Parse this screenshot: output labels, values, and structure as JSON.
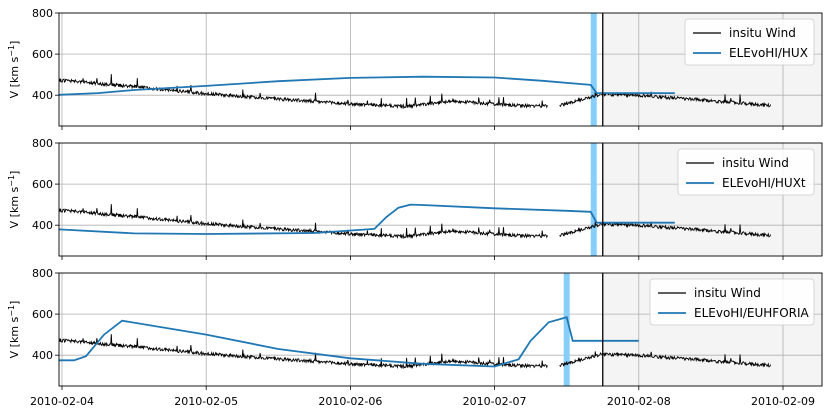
{
  "chart_data": [
    {
      "type": "line",
      "ylabel": "V [km s",
      "ylabel_sup": "−1",
      "ylabel_suffix": "]",
      "ylim": [
        250,
        800
      ],
      "yticks": [
        "400",
        "600",
        "800"
      ],
      "grid": true,
      "legend_position": "top-right",
      "series": [
        {
          "name": "insitu Wind",
          "color": "#000000"
        },
        {
          "name": "ELEvoHI/HUX",
          "color": "#1f77b4",
          "x": [
            "2010-02-03 22:00",
            "2010-02-04 06:00",
            "2010-02-04 12:00",
            "2010-02-05 00:00",
            "2010-02-05 12:00",
            "2010-02-06 00:00",
            "2010-02-06 12:00",
            "2010-02-07 00:00",
            "2010-02-07 08:00",
            "2010-02-07 14:00",
            "2010-02-07 16:00",
            "2010-02-07 17:00",
            "2010-02-08 06:00"
          ],
          "values": [
            400,
            410,
            425,
            445,
            468,
            484,
            490,
            486,
            470,
            455,
            450,
            410,
            410
          ]
        }
      ],
      "arrival_band": [
        "2010-02-07 16:00",
        "2010-02-07 17:00"
      ]
    },
    {
      "type": "line",
      "ylabel": "V [km s",
      "ylabel_sup": "−1",
      "ylabel_suffix": "]",
      "ylim": [
        250,
        800
      ],
      "yticks": [
        "400",
        "600",
        "800"
      ],
      "grid": true,
      "legend_position": "top-right",
      "series": [
        {
          "name": "insitu Wind",
          "color": "#000000"
        },
        {
          "name": "ELEvoHI/HUXt",
          "color": "#1f77b4",
          "x": [
            "2010-02-03 22:00",
            "2010-02-04 12:00",
            "2010-02-05 00:00",
            "2010-02-05 18:00",
            "2010-02-06 04:00",
            "2010-02-06 06:00",
            "2010-02-06 08:00",
            "2010-02-06 10:00",
            "2010-02-06 12:00",
            "2010-02-07 00:00",
            "2010-02-07 12:00",
            "2010-02-07 16:00",
            "2010-02-07 17:00",
            "2010-02-08 06:00"
          ],
          "values": [
            382,
            360,
            357,
            362,
            382,
            440,
            485,
            500,
            498,
            482,
            470,
            465,
            412,
            412
          ]
        }
      ],
      "arrival_band": [
        "2010-02-07 16:00",
        "2010-02-07 17:00"
      ]
    },
    {
      "type": "line",
      "ylabel": "V [km s",
      "ylabel_sup": "−1",
      "ylabel_suffix": "]",
      "ylim": [
        250,
        800
      ],
      "yticks": [
        "400",
        "600",
        "800"
      ],
      "grid": true,
      "legend_position": "top-right",
      "xticks": [
        "2010-02-04",
        "2010-02-05",
        "2010-02-06",
        "2010-02-07",
        "2010-02-08",
        "2010-02-09"
      ],
      "series": [
        {
          "name": "insitu Wind",
          "color": "#000000"
        },
        {
          "name": "ELEvoHI/EUHFORIA",
          "color": "#1f77b4",
          "x": [
            "2010-02-03 22:00",
            "2010-02-04 02:00",
            "2010-02-04 04:00",
            "2010-02-04 07:00",
            "2010-02-04 10:00",
            "2010-02-05 00:00",
            "2010-02-05 12:00",
            "2010-02-06 00:00",
            "2010-02-06 12:00",
            "2010-02-07 00:00",
            "2010-02-07 04:00",
            "2010-02-07 06:00",
            "2010-02-07 09:00",
            "2010-02-07 12:00",
            "2010-02-07 13:00",
            "2010-02-08 00:00"
          ],
          "values": [
            375,
            375,
            395,
            500,
            568,
            500,
            430,
            385,
            358,
            345,
            380,
            470,
            560,
            585,
            470,
            470
          ]
        }
      ],
      "arrival_band": [
        "2010-02-07 11:30",
        "2010-02-07 12:30"
      ]
    }
  ],
  "colors": {
    "model": "#1f77b4",
    "insitu": "#000000",
    "band": "#87cefa",
    "shade": "#f4f4f4",
    "grid": "#b0b0b0"
  }
}
